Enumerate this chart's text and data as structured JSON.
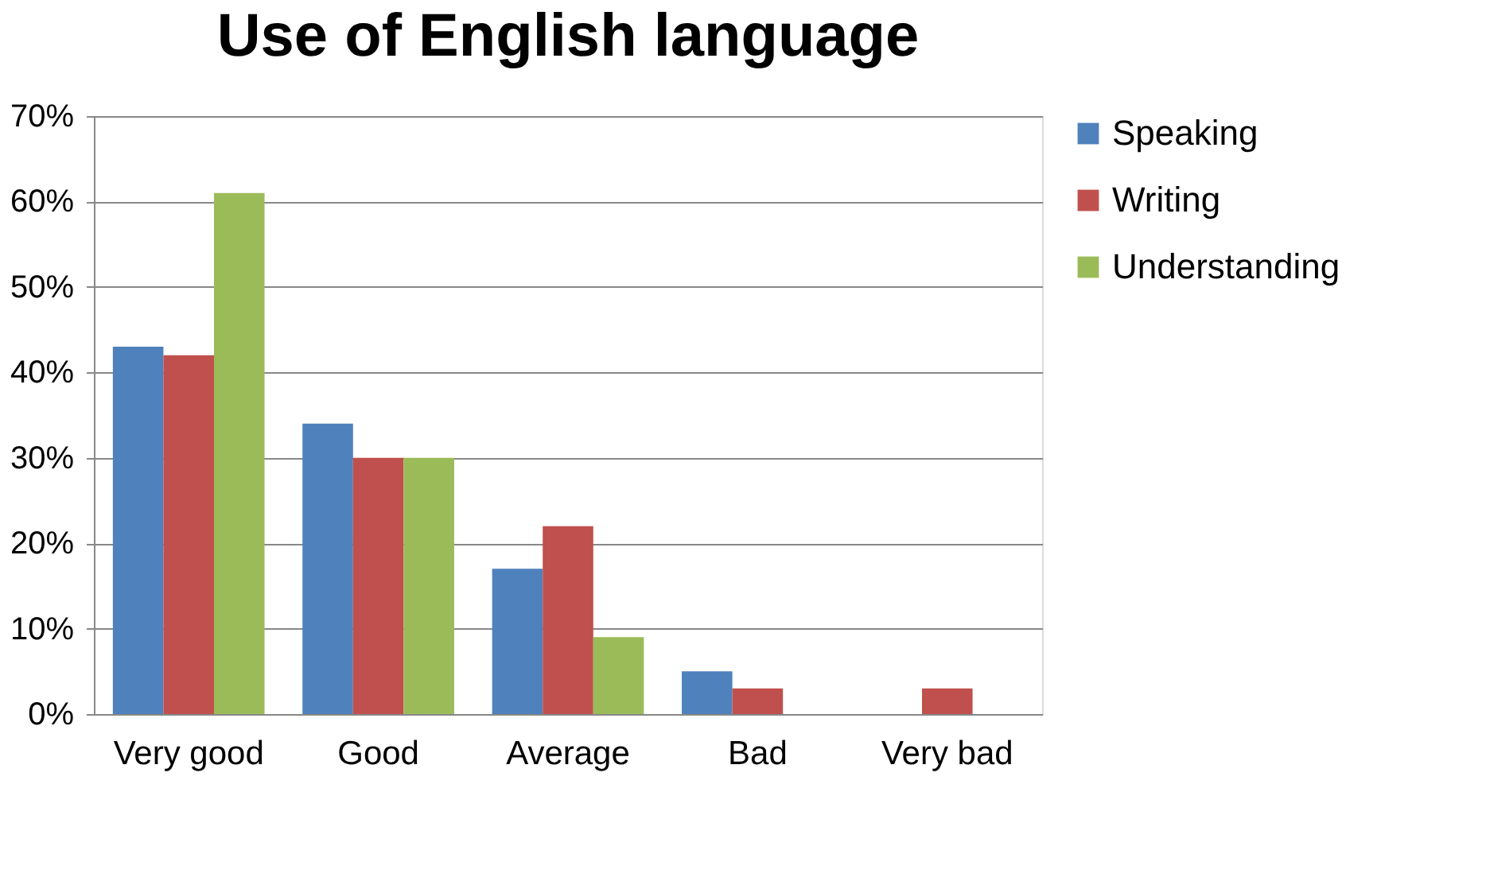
{
  "chart_data": {
    "type": "bar",
    "title": "Use of English language",
    "categories": [
      "Very good",
      "Good",
      "Average",
      "Bad",
      "Very bad"
    ],
    "series": [
      {
        "name": "Speaking",
        "color": "#4f81bd",
        "values": [
          43,
          34,
          17,
          5,
          0
        ]
      },
      {
        "name": "Writing",
        "color": "#c0504d",
        "values": [
          42,
          30,
          22,
          3,
          3
        ]
      },
      {
        "name": "Understanding",
        "color": "#9bbb59",
        "values": [
          61,
          30,
          9,
          0,
          0
        ]
      }
    ],
    "ylim": [
      0,
      70
    ],
    "yticks": [
      {
        "value": 0,
        "label": "0%"
      },
      {
        "value": 10,
        "label": "10%"
      },
      {
        "value": 20,
        "label": "20%"
      },
      {
        "value": 30,
        "label": "30%"
      },
      {
        "value": 40,
        "label": "40%"
      },
      {
        "value": 50,
        "label": "50%"
      },
      {
        "value": 60,
        "label": "60%"
      },
      {
        "value": 70,
        "label": "70%"
      }
    ],
    "grid": "y",
    "legend": "right"
  }
}
